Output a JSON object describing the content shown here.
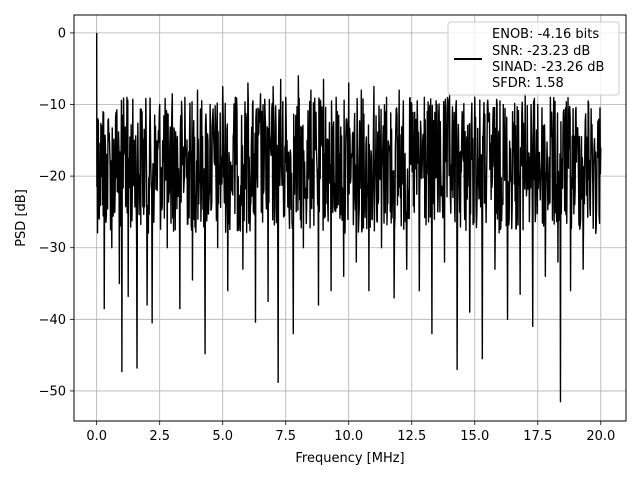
{
  "chart_data": {
    "type": "line",
    "xlabel": "Frequency [MHz]",
    "ylabel": "PSD [dB]",
    "xlim": [
      -0.9,
      21.0
    ],
    "ylim": [
      -54.2,
      2.5
    ],
    "xticks": [
      0.0,
      2.5,
      5.0,
      7.5,
      10.0,
      12.5,
      15.0,
      17.5,
      20.0
    ],
    "xtick_labels": [
      "0.0",
      "2.5",
      "5.0",
      "7.5",
      "10.0",
      "12.5",
      "15.0",
      "17.5",
      "20.0"
    ],
    "yticks": [
      0,
      -10,
      -20,
      -30,
      -40,
      -50
    ],
    "ytick_labels": [
      "0",
      "−10",
      "−20",
      "−30",
      "−40",
      "−50"
    ],
    "grid": true,
    "legend_position": "top-right",
    "legend_lines": [
      "ENOB: -4.16 bits",
      "SNR: -23.23 dB",
      "SINAD: -23.26 dB",
      "SFDR: 1.58"
    ],
    "series": [
      {
        "color": "#000000",
        "x": [
          0.0,
          0.05,
          0.1,
          0.25,
          0.3,
          0.5,
          0.6,
          0.75,
          0.9,
          1.0,
          1.2,
          1.25,
          1.5,
          1.6,
          1.8,
          2.0,
          2.2,
          2.5,
          2.8,
          3.0,
          3.3,
          3.5,
          3.8,
          4.0,
          4.3,
          4.5,
          4.8,
          5.0,
          5.2,
          5.5,
          5.8,
          6.0,
          6.3,
          6.5,
          6.8,
          7.0,
          7.2,
          7.3,
          7.5,
          7.8,
          8.0,
          8.2,
          8.5,
          8.8,
          9.0,
          9.3,
          9.5,
          9.8,
          10.0,
          10.3,
          10.5,
          10.8,
          11.0,
          11.3,
          11.5,
          11.8,
          12.0,
          12.3,
          12.5,
          12.8,
          13.0,
          13.3,
          13.5,
          13.8,
          14.0,
          14.3,
          14.5,
          14.8,
          15.0,
          15.3,
          15.5,
          15.8,
          16.0,
          16.3,
          16.5,
          16.8,
          17.0,
          17.3,
          17.5,
          17.8,
          18.0,
          18.3,
          18.4,
          18.6,
          18.8,
          19.0,
          19.3,
          19.5,
          19.8,
          20.0
        ],
        "y": [
          0.0,
          -12.0,
          -26.0,
          -11.0,
          -38.5,
          -14.0,
          -30.0,
          -12.0,
          -35.0,
          -47.3,
          -9.0,
          -36.8,
          -15.0,
          -46.8,
          -11.0,
          -38.0,
          -40.5,
          -10.0,
          -30.0,
          -8.5,
          -38.5,
          -9.0,
          -34.5,
          -8.0,
          -44.8,
          -10.0,
          -30.0,
          -7.5,
          -36.0,
          -9.0,
          -33.0,
          -7.0,
          -40.4,
          -8.5,
          -37.5,
          -7.5,
          -48.8,
          -6.5,
          -9.0,
          -42.0,
          -6.0,
          -30.0,
          -8.0,
          -38.0,
          -6.5,
          -36.0,
          -9.0,
          -34.0,
          -7.0,
          -32.0,
          -8.0,
          -36.0,
          -7.5,
          -30.0,
          -9.0,
          -37.0,
          -8.0,
          -33.0,
          -10.0,
          -36.0,
          -9.0,
          -42.0,
          -10.0,
          -32.0,
          -8.5,
          -47.0,
          -11.0,
          -39.0,
          -9.0,
          -45.5,
          -10.0,
          -33.0,
          -9.5,
          -40.0,
          -11.0,
          -36.5,
          -8.5,
          -41.0,
          -10.0,
          -34.0,
          -9.0,
          -32.0,
          -51.5,
          -10.5,
          -36.0,
          -11.0,
          -33.0,
          -9.5,
          -28.0,
          -16.0
        ]
      }
    ]
  }
}
